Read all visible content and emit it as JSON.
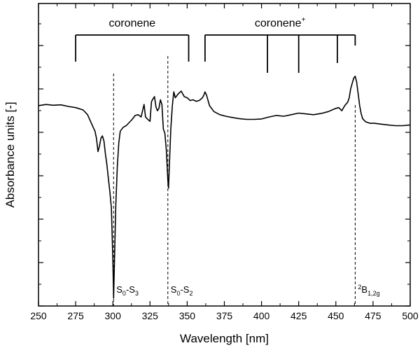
{
  "chart_data": {
    "type": "line",
    "xlabel": "Wavelength [nm]",
    "ylabel": "Absorbance units [-]",
    "xlim": [
      250,
      500
    ],
    "x_ticks": [
      250,
      275,
      300,
      325,
      350,
      375,
      400,
      425,
      450,
      475,
      500
    ],
    "y_tick_labels_shown": false,
    "grid": false,
    "series": [
      {
        "x": [
          250,
          255,
          260,
          265,
          270,
          275,
          280,
          283,
          285,
          287,
          288,
          289,
          290,
          291,
          292,
          293,
          294,
          295,
          296,
          297,
          298,
          299,
          300,
          300.5,
          301,
          302,
          303,
          304,
          305,
          307,
          309,
          311,
          313,
          315,
          317,
          319,
          320,
          321,
          322,
          323,
          325,
          326,
          327,
          328,
          329,
          330,
          331,
          332,
          333,
          334,
          335,
          336,
          337,
          337.5,
          338,
          339,
          340,
          341,
          342,
          344,
          346,
          348,
          350,
          352,
          354,
          356,
          358,
          360,
          361,
          362,
          363,
          365,
          368,
          372,
          376,
          380,
          385,
          390,
          395,
          400,
          405,
          410,
          415,
          420,
          425,
          430,
          435,
          440,
          445,
          448,
          450,
          452,
          454,
          456,
          458,
          459,
          460,
          461,
          462,
          463,
          464,
          465,
          466,
          467,
          468,
          470,
          473,
          476,
          480,
          485,
          490,
          495,
          500
        ],
        "y": [
          0.35,
          0.38,
          0.36,
          0.37,
          0.33,
          0.3,
          0.24,
          0.12,
          -0.05,
          -0.22,
          -0.3,
          -0.48,
          -0.82,
          -0.68,
          -0.48,
          -0.42,
          -0.55,
          -0.88,
          -1.15,
          -1.5,
          -1.85,
          -2.25,
          -3.55,
          -4.55,
          -3.8,
          -2.2,
          -1.2,
          -0.6,
          -0.3,
          -0.2,
          -0.16,
          -0.08,
          0.0,
          0.1,
          0.12,
          0.06,
          0.22,
          0.38,
          0.06,
          0.02,
          -0.05,
          0.45,
          0.52,
          0.58,
          0.32,
          0.22,
          0.28,
          0.5,
          0.38,
          -0.25,
          -0.35,
          -0.8,
          -1.55,
          -1.75,
          -1.2,
          -0.25,
          0.35,
          0.7,
          0.55,
          0.65,
          0.72,
          0.58,
          0.55,
          0.48,
          0.5,
          0.46,
          0.48,
          0.54,
          0.6,
          0.7,
          0.62,
          0.35,
          0.2,
          0.12,
          0.08,
          0.05,
          0.02,
          0.0,
          0.0,
          0.01,
          0.06,
          0.1,
          0.08,
          0.12,
          0.16,
          0.14,
          0.12,
          0.15,
          0.2,
          0.25,
          0.28,
          0.3,
          0.22,
          0.35,
          0.44,
          0.55,
          0.78,
          0.92,
          1.05,
          1.1,
          0.95,
          0.65,
          0.35,
          0.15,
          0.02,
          -0.06,
          -0.1,
          -0.1,
          -0.12,
          -0.14,
          -0.16,
          -0.16,
          -0.14
        ]
      }
    ],
    "vertical_dashed_lines": [
      {
        "x": 300.5,
        "label_main": "S",
        "sub1": "0",
        "dash": "-S",
        "sub2": "3"
      },
      {
        "x": 337,
        "label_main": "S",
        "sub1": "0",
        "dash": "-S",
        "sub2": "2"
      },
      {
        "x": 463,
        "label_sup": "2",
        "label_main": "B",
        "sub1": "1,2g"
      }
    ],
    "brackets": [
      {
        "label": "coronene",
        "x_start": 275,
        "x_end": 351,
        "ticks": []
      },
      {
        "label": "coronene",
        "label_sup": "+",
        "x_start": 362,
        "x_end": 463,
        "ticks": [
          404,
          425,
          451
        ]
      }
    ]
  }
}
